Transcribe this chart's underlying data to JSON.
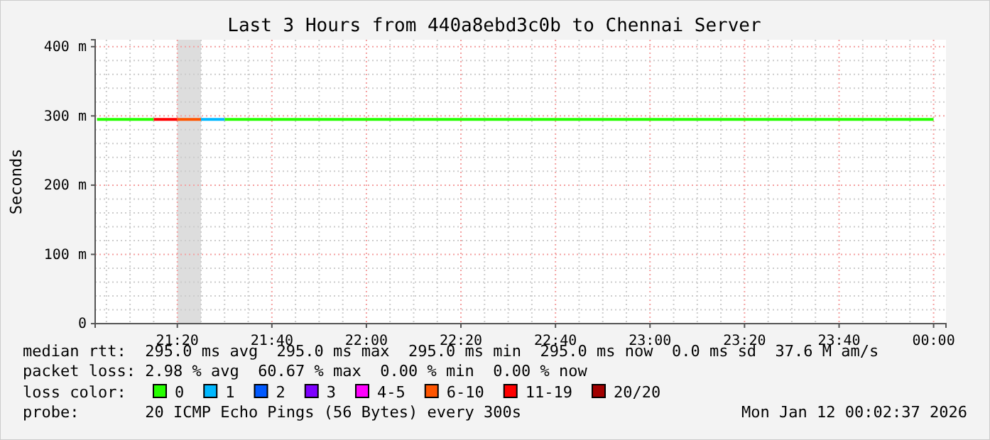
{
  "chart_data": {
    "type": "line",
    "title": "Last 3 Hours from 440a8ebd3c0b to Chennai Server",
    "ylabel": "Seconds",
    "xlim": [
      21.0436,
      24.0436
    ],
    "xticks": [
      {
        "value": 21.3333,
        "label": "21:20"
      },
      {
        "value": 21.6667,
        "label": "21:40"
      },
      {
        "value": 22,
        "label": "22:00"
      },
      {
        "value": 22.3333,
        "label": "22:20"
      },
      {
        "value": 22.6667,
        "label": "22:40"
      },
      {
        "value": 23,
        "label": "23:00"
      },
      {
        "value": 23.3333,
        "label": "23:20"
      },
      {
        "value": 23.6667,
        "label": "23:40"
      },
      {
        "value": 24,
        "label": "00:00"
      }
    ],
    "ylim": [
      0,
      410
    ],
    "yticks": [
      {
        "value": 0,
        "label": "0"
      },
      {
        "value": 100,
        "label": "100 m"
      },
      {
        "value": 200,
        "label": "200 m"
      },
      {
        "value": 300,
        "label": "300 m"
      },
      {
        "value": 400,
        "label": "400 m"
      }
    ],
    "grid": true,
    "legend": "bottom",
    "legend_title": "loss color:",
    "bands": [
      {
        "axis": "x",
        "from": 21.3333,
        "to": 21.4167,
        "color": "#dddddd"
      }
    ],
    "series": [
      {
        "name": "0",
        "color": "#26ff00",
        "x": [
          21.05,
          21.25,
          21.3333,
          21.5,
          24.0
        ],
        "values": [
          295,
          295,
          null,
          295,
          295
        ]
      },
      {
        "name": "1",
        "color": "#00b8ff",
        "x": [
          21.4167,
          21.5
        ],
        "values": [
          295,
          295
        ]
      },
      {
        "name": "2",
        "color": "#0059ff"
      },
      {
        "name": "3",
        "color": "#7e00ff"
      },
      {
        "name": "4-5",
        "color": "#ff00fe"
      },
      {
        "name": "6-10",
        "color": "#ff5500",
        "x": [
          21.3333,
          21.4167
        ],
        "values": [
          295,
          295
        ]
      },
      {
        "name": "11-19",
        "color": "#ff0000",
        "x": [
          21.25,
          21.3333
        ],
        "values": [
          295,
          295
        ]
      },
      {
        "name": "20/20",
        "color": "#a10000"
      }
    ],
    "annotations": [
      "median rtt:  295.0 ms avg  295.0 ms max  295.0 ms min  295.0 ms now  0.0 ms sd  37.6 M am/s",
      "packet loss: 2.98 % avg  60.67 % max  0.00 % min  0.00 % now",
      "probe:       20 ICMP Echo Pings (56 Bytes) every 300s",
      "Mon Jan 12 00:02:37 2026"
    ]
  }
}
